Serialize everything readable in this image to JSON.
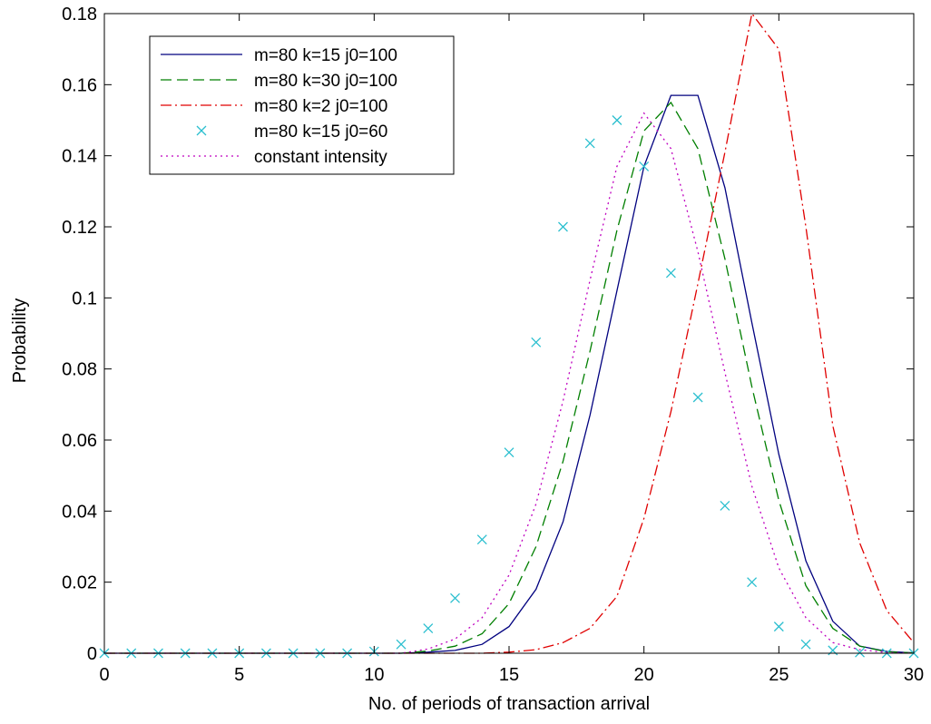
{
  "chart_data": {
    "type": "line",
    "title": "",
    "xlabel": "No. of periods of transaction arrival",
    "ylabel": "Probability",
    "xlim": [
      0,
      30
    ],
    "ylim": [
      0,
      0.18
    ],
    "xticks": [
      0,
      5,
      10,
      15,
      20,
      25,
      30
    ],
    "xtick_labels": [
      "0",
      "5",
      "10",
      "15",
      "20",
      "25",
      "30"
    ],
    "yticks": [
      0,
      0.02,
      0.04,
      0.06,
      0.08,
      0.1,
      0.12,
      0.14,
      0.16,
      0.18
    ],
    "ytick_labels": [
      "0",
      "0.02",
      "0.04",
      "0.06",
      "0.08",
      "0.1",
      "0.12",
      "0.14",
      "0.16",
      "0.18"
    ],
    "grid": false,
    "legend_position": "top-left",
    "x": [
      0,
      1,
      2,
      3,
      4,
      5,
      6,
      7,
      8,
      9,
      10,
      11,
      12,
      13,
      14,
      15,
      16,
      17,
      18,
      19,
      20,
      21,
      22,
      23,
      24,
      25,
      26,
      27,
      28,
      29,
      30
    ],
    "series": [
      {
        "name": "m=80 k=15 j0=100",
        "color": "#00007f",
        "style": "solid",
        "values": [
          0,
          0,
          0,
          0,
          0,
          0,
          0,
          0,
          0,
          0,
          0,
          0,
          0.0003,
          0.0008,
          0.0025,
          0.0075,
          0.018,
          0.037,
          0.067,
          0.102,
          0.137,
          0.157,
          0.157,
          0.131,
          0.093,
          0.056,
          0.026,
          0.009,
          0.002,
          0.0005,
          0.0001
        ]
      },
      {
        "name": "m=80 k=30 j0=100",
        "color": "#007f00",
        "style": "dashed",
        "values": [
          0,
          0,
          0,
          0,
          0,
          0,
          0,
          0,
          0,
          0,
          0,
          0,
          0.0006,
          0.002,
          0.0055,
          0.014,
          0.03,
          0.054,
          0.085,
          0.119,
          0.147,
          0.155,
          0.142,
          0.111,
          0.075,
          0.043,
          0.019,
          0.007,
          0.002,
          0.0004,
          0.0001
        ]
      },
      {
        "name": "m=80 k=2 j0=100",
        "color": "#e00000",
        "style": "dashdot",
        "values": [
          0,
          0,
          0,
          0,
          0,
          0,
          0,
          0,
          0,
          0,
          0,
          0,
          0,
          0,
          0,
          0.0003,
          0.001,
          0.003,
          0.007,
          0.016,
          0.038,
          0.068,
          0.104,
          0.141,
          0.18,
          0.17,
          0.12,
          0.064,
          0.031,
          0.012,
          0.003
        ]
      },
      {
        "name": "m=80 k=15 j0=60",
        "color": "#2bbfcf",
        "style": "markers",
        "values": [
          0,
          0,
          0,
          0,
          0,
          0,
          0,
          0,
          0,
          0,
          0.0005,
          0.0025,
          0.007,
          0.0155,
          0.032,
          0.0565,
          0.0875,
          0.12,
          0.1435,
          0.15,
          0.137,
          0.107,
          0.072,
          0.0415,
          0.02,
          0.0075,
          0.0025,
          0.0008,
          0.0002,
          0,
          0
        ]
      },
      {
        "name": "constant intensity",
        "color": "#bf00bf",
        "style": "dotted",
        "values": [
          0,
          0,
          0,
          0,
          0,
          0,
          0,
          0,
          0,
          0,
          0,
          0,
          0.0012,
          0.004,
          0.01,
          0.022,
          0.042,
          0.071,
          0.105,
          0.137,
          0.152,
          0.142,
          0.113,
          0.079,
          0.047,
          0.024,
          0.01,
          0.003,
          0.001,
          0.0002,
          0
        ]
      }
    ]
  }
}
